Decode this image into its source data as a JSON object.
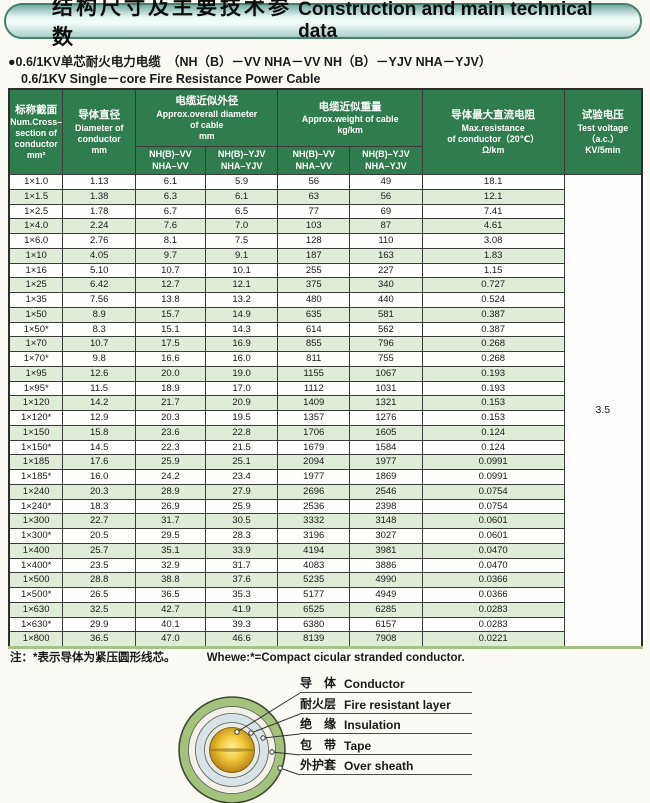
{
  "banner": {
    "title_zh": "结构尺寸及主要技术参数",
    "title_en": "Construction and main technical data"
  },
  "subtitle": {
    "line1": "●0.6/1KV单芯耐火电力电缆　（NH（B）－VV NHA－VV  NH（B）－YJV NHA－YJV）",
    "line2": "0.6/1KV Single－core Fire Resistance Power Cable"
  },
  "table": {
    "header": {
      "cross_section": {
        "zh": "标称截面",
        "en": "Num.Cross–\nsection of\nconductor\nmm²"
      },
      "diameter": {
        "zh": "导体直径",
        "en": "Diameter of\nconductor\nmm"
      },
      "overall_diameter": {
        "zh": "电缆近似外径",
        "en": "Approx.overall diameter\nof cable\nmm"
      },
      "weight": {
        "zh": "电缆近似重量",
        "en": "Approx.weight of cable\nkg/km"
      },
      "sub_vv": "NH(B)–VV\nNHA–VV",
      "sub_yjv": "NH(B)–YJV\nNHA–YJV",
      "resistance": {
        "zh": "导体最大直流电阻",
        "en": "Max.resistance\nof conductor（20℃）\nΩ/km"
      },
      "test_voltage": {
        "zh": "试验电压",
        "en": "Test voltage\n（a.c.）\nKV/5min"
      }
    },
    "test_voltage_value": "3.5",
    "rows": [
      [
        "1×1.0",
        "1.13",
        "6.1",
        "5.9",
        "56",
        "49",
        "18.1"
      ],
      [
        "1×1.5",
        "1.38",
        "6.3",
        "6.1",
        "63",
        "56",
        "12.1"
      ],
      [
        "1×2.5",
        "1.78",
        "6.7",
        "6.5",
        "77",
        "69",
        "7.41"
      ],
      [
        "1×4.0",
        "2.24",
        "7.6",
        "7.0",
        "103",
        "87",
        "4.61"
      ],
      [
        "1×6.0",
        "2.76",
        "8.1",
        "7.5",
        "128",
        "110",
        "3.08"
      ],
      [
        "1×10",
        "4.05",
        "9.7",
        "9.1",
        "187",
        "163",
        "1.83"
      ],
      [
        "1×16",
        "5.10",
        "10.7",
        "10.1",
        "255",
        "227",
        "1.15"
      ],
      [
        "1×25",
        "6.42",
        "12.7",
        "12.1",
        "375",
        "340",
        "0.727"
      ],
      [
        "1×35",
        "7.56",
        "13.8",
        "13.2",
        "480",
        "440",
        "0.524"
      ],
      [
        "1×50",
        "8.9",
        "15.7",
        "14.9",
        "635",
        "581",
        "0.387"
      ],
      [
        "1×50*",
        "8.3",
        "15.1",
        "14.3",
        "614",
        "562",
        "0.387"
      ],
      [
        "1×70",
        "10.7",
        "17.5",
        "16.9",
        "855",
        "796",
        "0.268"
      ],
      [
        "1×70*",
        "9.8",
        "16.6",
        "16.0",
        "811",
        "755",
        "0.268"
      ],
      [
        "1×95",
        "12.6",
        "20.0",
        "19.0",
        "1155",
        "1067",
        "0.193"
      ],
      [
        "1×95*",
        "11.5",
        "18.9",
        "17.0",
        "1112",
        "1031",
        "0.193"
      ],
      [
        "1×120",
        "14.2",
        "21.7",
        "20.9",
        "1409",
        "1321",
        "0.153"
      ],
      [
        "1×120*",
        "12.9",
        "20.3",
        "19.5",
        "1357",
        "1276",
        "0.153"
      ],
      [
        "1×150",
        "15.8",
        "23.6",
        "22.8",
        "1706",
        "1605",
        "0.124"
      ],
      [
        "1×150*",
        "14.5",
        "22.3",
        "21.5",
        "1679",
        "1584",
        "0.124"
      ],
      [
        "1×185",
        "17.6",
        "25.9",
        "25.1",
        "2094",
        "1977",
        "0.0991"
      ],
      [
        "1×185*",
        "16.0",
        "24.2",
        "23.4",
        "1977",
        "1869",
        "0.0991"
      ],
      [
        "1×240",
        "20.3",
        "28.9",
        "27.9",
        "2696",
        "2546",
        "0.0754"
      ],
      [
        "1×240*",
        "18.3",
        "26.9",
        "25.9",
        "2536",
        "2398",
        "0.0754"
      ],
      [
        "1×300",
        "22.7",
        "31.7",
        "30.5",
        "3332",
        "3148",
        "0.0601"
      ],
      [
        "1×300*",
        "20.5",
        "29.5",
        "28.3",
        "3196",
        "3027",
        "0.0601"
      ],
      [
        "1×400",
        "25.7",
        "35.1",
        "33.9",
        "4194",
        "3981",
        "0.0470"
      ],
      [
        "1×400*",
        "23.5",
        "32.9",
        "31.7",
        "4083",
        "3886",
        "0.0470"
      ],
      [
        "1×500",
        "28.8",
        "38.8",
        "37.6",
        "5235",
        "4990",
        "0.0366"
      ],
      [
        "1×500*",
        "26.5",
        "36.5",
        "35.3",
        "5177",
        "4949",
        "0.0366"
      ],
      [
        "1×630",
        "32.5",
        "42.7",
        "41.9",
        "6525",
        "6285",
        "0.0283"
      ],
      [
        "1×630*",
        "29.9",
        "40.1",
        "39.3",
        "6380",
        "6157",
        "0.0283"
      ],
      [
        "1×800",
        "36.5",
        "47.0",
        "46.6",
        "8139",
        "7908",
        "0.0221"
      ]
    ]
  },
  "note": {
    "zh": "注：*表示导体为紧压圆形线芯。",
    "en": "Whewe:*=Compact cicular stranded conductor."
  },
  "diagram": {
    "labels": [
      {
        "zh": "导　体",
        "en": "Conductor"
      },
      {
        "zh": "耐火层",
        "en": "Fire resistant layer"
      },
      {
        "zh": "绝　缘",
        "en": "Insulation"
      },
      {
        "zh": "包　带",
        "en": "Tape"
      },
      {
        "zh": "外护套",
        "en": "Over sheath"
      }
    ]
  }
}
